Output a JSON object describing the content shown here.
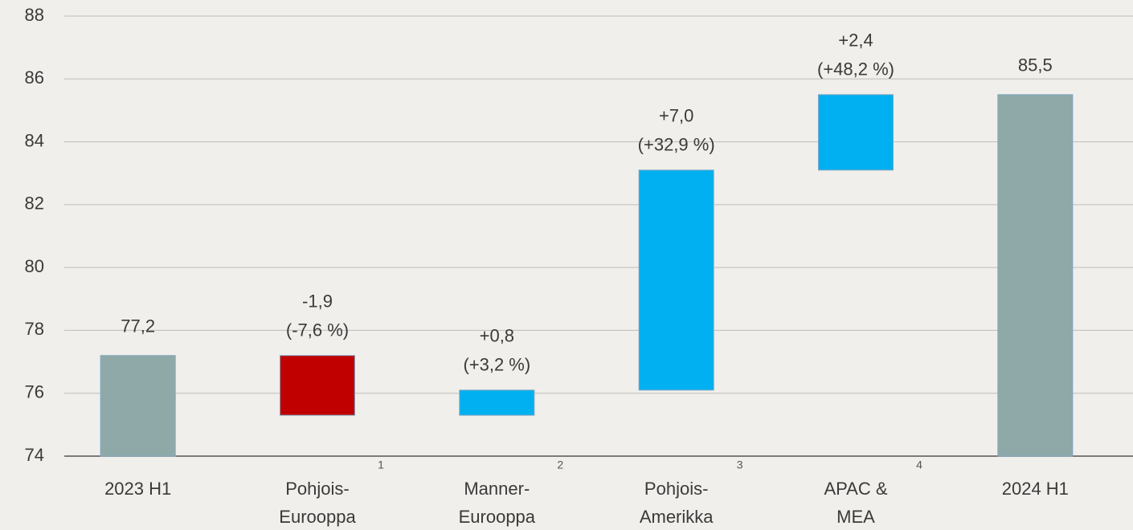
{
  "chart_data": {
    "type": "waterfall",
    "categories": [
      [
        "2023 H1"
      ],
      [
        "Pohjois-",
        "Eurooppa"
      ],
      [
        "Manner-",
        "Eurooppa"
      ],
      [
        "Pohjois-",
        "Amerikka"
      ],
      [
        "APAC &",
        "MEA"
      ],
      [
        "2024 H1"
      ]
    ],
    "category_notes": [
      null,
      "1",
      "2",
      "3",
      "4",
      null
    ],
    "kinds": [
      "total",
      "delta",
      "delta",
      "delta",
      "delta",
      "total"
    ],
    "values": [
      77.2,
      -1.9,
      0.8,
      7.0,
      2.4,
      85.5
    ],
    "value_labels": [
      "77,2",
      "-1,9",
      "+0,8",
      "+7,0",
      "+2,4",
      "85,5"
    ],
    "pct_values": [
      null,
      -7.6,
      3.2,
      32.9,
      48.2,
      null
    ],
    "pct_labels": [
      null,
      "(-7,6 %)",
      "(+3,2 %)",
      "(+32,9 %)",
      "(+48,2 %)",
      null
    ],
    "colors": {
      "total": "#8FA9A9",
      "increase": "#00B0F0",
      "decrease": "#C00000"
    },
    "ylim": [
      74,
      88
    ],
    "yticks": [
      74,
      76,
      78,
      80,
      82,
      84,
      86,
      88
    ],
    "grid": true
  }
}
